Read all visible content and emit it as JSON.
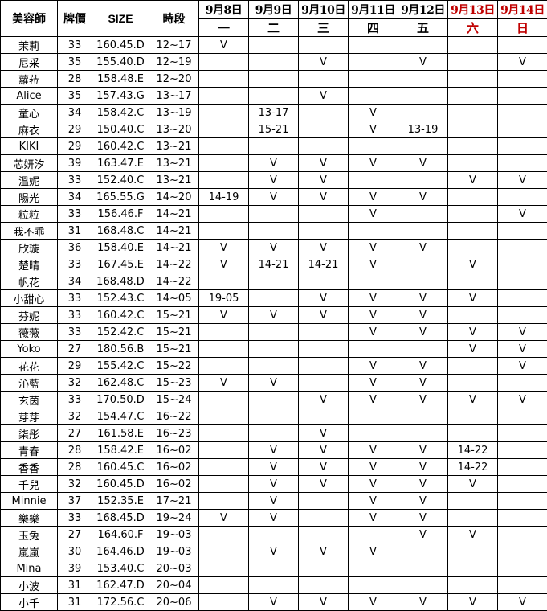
{
  "header": {
    "name": "美容師",
    "price": "牌價",
    "size": "SIZE",
    "time": "時段",
    "days": [
      {
        "date": "9月8日",
        "weekday": "一",
        "weekend": false
      },
      {
        "date": "9月9日",
        "weekday": "二",
        "weekend": false
      },
      {
        "date": "9月10日",
        "weekday": "三",
        "weekend": false
      },
      {
        "date": "9月11日",
        "weekday": "四",
        "weekend": false
      },
      {
        "date": "9月12日",
        "weekday": "五",
        "weekend": false
      },
      {
        "date": "9月13日",
        "weekday": "六",
        "weekend": true
      },
      {
        "date": "9月14日",
        "weekday": "日",
        "weekend": true
      }
    ]
  },
  "colors": {
    "weekend": "#c00000",
    "border": "#000000"
  },
  "rows": [
    [
      "茉莉",
      "33",
      "160.45.D",
      "12~17",
      "V",
      "",
      "",
      "",
      "",
      "",
      ""
    ],
    [
      "尼采",
      "35",
      "155.40.D",
      "12~19",
      "",
      "",
      "V",
      "",
      "V",
      "",
      "V"
    ],
    [
      "蘿菈",
      "28",
      "158.48.E",
      "12~20",
      "",
      "",
      "",
      "",
      "",
      "",
      ""
    ],
    [
      "Alice",
      "35",
      "157.43.G",
      "13~17",
      "",
      "",
      "V",
      "",
      "",
      "",
      ""
    ],
    [
      "童心",
      "34",
      "158.42.C",
      "13~19",
      "",
      "13-17",
      "",
      "V",
      "",
      "",
      ""
    ],
    [
      "麻衣",
      "29",
      "150.40.C",
      "13~20",
      "",
      "15-21",
      "",
      "V",
      "13-19",
      "",
      ""
    ],
    [
      "KIKI",
      "29",
      "160.42.C",
      "13~21",
      "",
      "",
      "",
      "",
      "",
      "",
      ""
    ],
    [
      "芯妍汐",
      "39",
      "163.47.E",
      "13~21",
      "",
      "V",
      "V",
      "V",
      "V",
      "",
      ""
    ],
    [
      "溫妮",
      "33",
      "152.40.C",
      "13~21",
      "",
      "V",
      "V",
      "",
      "",
      "V",
      "V"
    ],
    [
      "陽光",
      "34",
      "165.55.G",
      "14~20",
      "14-19",
      "V",
      "V",
      "V",
      "V",
      "",
      ""
    ],
    [
      "粒粒",
      "33",
      "156.46.F",
      "14~21",
      "",
      "",
      "",
      "V",
      "",
      "",
      "V"
    ],
    [
      "我不乖",
      "31",
      "168.48.C",
      "14~21",
      "",
      "",
      "",
      "",
      "",
      "",
      ""
    ],
    [
      "欣璇",
      "36",
      "158.40.E",
      "14~21",
      "V",
      "V",
      "V",
      "V",
      "V",
      "",
      ""
    ],
    [
      "楚晴",
      "33",
      "167.45.E",
      "14~22",
      "V",
      "14-21",
      "14-21",
      "V",
      "",
      "V",
      ""
    ],
    [
      "帆花",
      "34",
      "168.48.D",
      "14~22",
      "",
      "",
      "",
      "",
      "",
      "",
      ""
    ],
    [
      "小甜心",
      "33",
      "152.43.C",
      "14~05",
      "19-05",
      "",
      "V",
      "V",
      "V",
      "V",
      ""
    ],
    [
      "芬妮",
      "33",
      "160.42.C",
      "15~21",
      "V",
      "V",
      "V",
      "V",
      "V",
      "",
      ""
    ],
    [
      "薇薇",
      "33",
      "152.42.C",
      "15~21",
      "",
      "",
      "",
      "V",
      "V",
      "V",
      "V"
    ],
    [
      "Yoko",
      "27",
      "180.56.B",
      "15~21",
      "",
      "",
      "",
      "",
      "",
      "V",
      "V"
    ],
    [
      "花花",
      "29",
      "155.42.C",
      "15~22",
      "",
      "",
      "",
      "V",
      "V",
      "",
      "V"
    ],
    [
      "沁藍",
      "32",
      "162.48.C",
      "15~23",
      "V",
      "V",
      "",
      "V",
      "V",
      "",
      ""
    ],
    [
      "玄茵",
      "33",
      "170.50.D",
      "15~24",
      "",
      "",
      "V",
      "V",
      "V",
      "V",
      "V"
    ],
    [
      "芽芽",
      "32",
      "154.47.C",
      "16~22",
      "",
      "",
      "",
      "",
      "",
      "",
      ""
    ],
    [
      "柒彤",
      "27",
      "161.58.E",
      "16~23",
      "",
      "",
      "V",
      "",
      "",
      "",
      ""
    ],
    [
      "青春",
      "28",
      "158.42.E",
      "16~02",
      "",
      "V",
      "V",
      "V",
      "V",
      "14-22",
      ""
    ],
    [
      "香香",
      "28",
      "160.45.C",
      "16~02",
      "",
      "V",
      "V",
      "V",
      "V",
      "14-22",
      ""
    ],
    [
      "千兒",
      "32",
      "160.45.D",
      "16~02",
      "",
      "V",
      "V",
      "V",
      "V",
      "V",
      ""
    ],
    [
      "Minnie",
      "37",
      "152.35.E",
      "17~21",
      "",
      "V",
      "",
      "V",
      "V",
      "",
      ""
    ],
    [
      "樂樂",
      "33",
      "168.45.D",
      "19~24",
      "V",
      "V",
      "",
      "V",
      "V",
      "",
      ""
    ],
    [
      "玉兔",
      "27",
      "164.60.F",
      "19~03",
      "",
      "",
      "",
      "",
      "V",
      "V",
      ""
    ],
    [
      "嵐嵐",
      "30",
      "164.46.D",
      "19~03",
      "",
      "V",
      "V",
      "V",
      "",
      "",
      ""
    ],
    [
      "Mina",
      "39",
      "153.40.C",
      "20~03",
      "",
      "",
      "",
      "",
      "",
      "",
      ""
    ],
    [
      "小波",
      "31",
      "162.47.D",
      "20~04",
      "",
      "",
      "",
      "",
      "",
      "",
      ""
    ],
    [
      "小千",
      "31",
      "172.56.C",
      "20~06",
      "",
      "V",
      "V",
      "V",
      "V",
      "V",
      "V"
    ]
  ]
}
